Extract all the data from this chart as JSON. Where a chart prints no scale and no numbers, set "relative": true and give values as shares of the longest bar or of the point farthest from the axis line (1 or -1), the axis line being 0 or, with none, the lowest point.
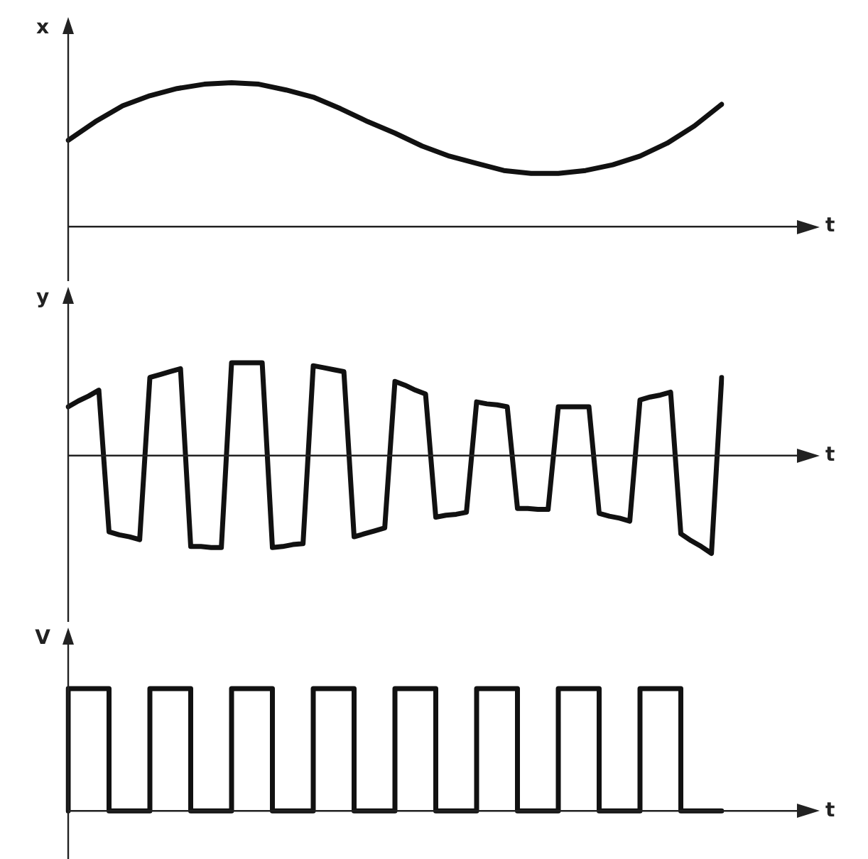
{
  "chart_data": [
    {
      "type": "line",
      "relative": true,
      "ylabel": "x",
      "xlabel": "t",
      "marker": "none",
      "line_style": "solid",
      "color": "#111111",
      "categories": [
        null,
        null,
        null,
        null,
        null,
        null,
        null,
        null,
        null,
        null,
        null,
        null,
        null,
        null,
        null,
        null,
        null,
        null,
        null,
        null,
        null,
        null,
        null,
        null,
        null
      ],
      "values": [
        0.6,
        0.73,
        0.84,
        0.91,
        0.96,
        0.99,
        1.0,
        0.99,
        0.95,
        0.9,
        0.82,
        0.73,
        0.65,
        0.56,
        0.49,
        0.44,
        0.39,
        0.37,
        0.37,
        0.39,
        0.43,
        0.49,
        0.58,
        0.7,
        0.85
      ]
    },
    {
      "type": "line",
      "relative": true,
      "ylabel": "y",
      "xlabel": "t",
      "marker": "none",
      "line_style": "solid",
      "color": "#111111",
      "categories": [
        null,
        null,
        null,
        null,
        null,
        null,
        null,
        null,
        null,
        null,
        null,
        null,
        null,
        null,
        null,
        null,
        null,
        null,
        null,
        null,
        null,
        null,
        null,
        null,
        null,
        null,
        null,
        null,
        null,
        null,
        null,
        null,
        null,
        null,
        null,
        null,
        null,
        null,
        null,
        null,
        null,
        null,
        null,
        null,
        null,
        null,
        null,
        null,
        null,
        null,
        null,
        null,
        null,
        null,
        null,
        null,
        null,
        null,
        null,
        null,
        null,
        null,
        null,
        null,
        null
      ],
      "values": [
        0.5,
        0.56,
        0.61,
        0.67,
        -0.78,
        -0.81,
        -0.83,
        -0.86,
        0.8,
        0.83,
        0.86,
        0.89,
        -0.93,
        -0.93,
        -0.94,
        -0.94,
        0.95,
        0.95,
        0.95,
        0.95,
        -0.94,
        -0.93,
        -0.91,
        -0.9,
        0.92,
        0.9,
        0.88,
        0.86,
        -0.83,
        -0.8,
        -0.77,
        -0.74,
        0.76,
        0.72,
        0.67,
        0.63,
        -0.63,
        -0.61,
        -0.6,
        -0.58,
        0.55,
        0.53,
        0.52,
        0.5,
        -0.54,
        -0.54,
        -0.55,
        -0.55,
        0.5,
        0.5,
        0.5,
        0.5,
        -0.59,
        -0.62,
        -0.64,
        -0.67,
        0.57,
        0.6,
        0.62,
        0.65,
        -0.8,
        -0.87,
        -0.93,
        -1.0,
        0.8
      ]
    },
    {
      "type": "step",
      "relative": true,
      "ylabel": "V",
      "xlabel": "t",
      "marker": "none",
      "line_style": "solid",
      "color": "#111111",
      "categories": [
        null,
        null,
        null,
        null,
        null,
        null,
        null,
        null,
        null,
        null,
        null,
        null,
        null,
        null,
        null,
        null,
        null
      ],
      "values": [
        0,
        1,
        0,
        1,
        0,
        1,
        0,
        1,
        0,
        1,
        0,
        1,
        0,
        1,
        0,
        1,
        0
      ]
    }
  ]
}
